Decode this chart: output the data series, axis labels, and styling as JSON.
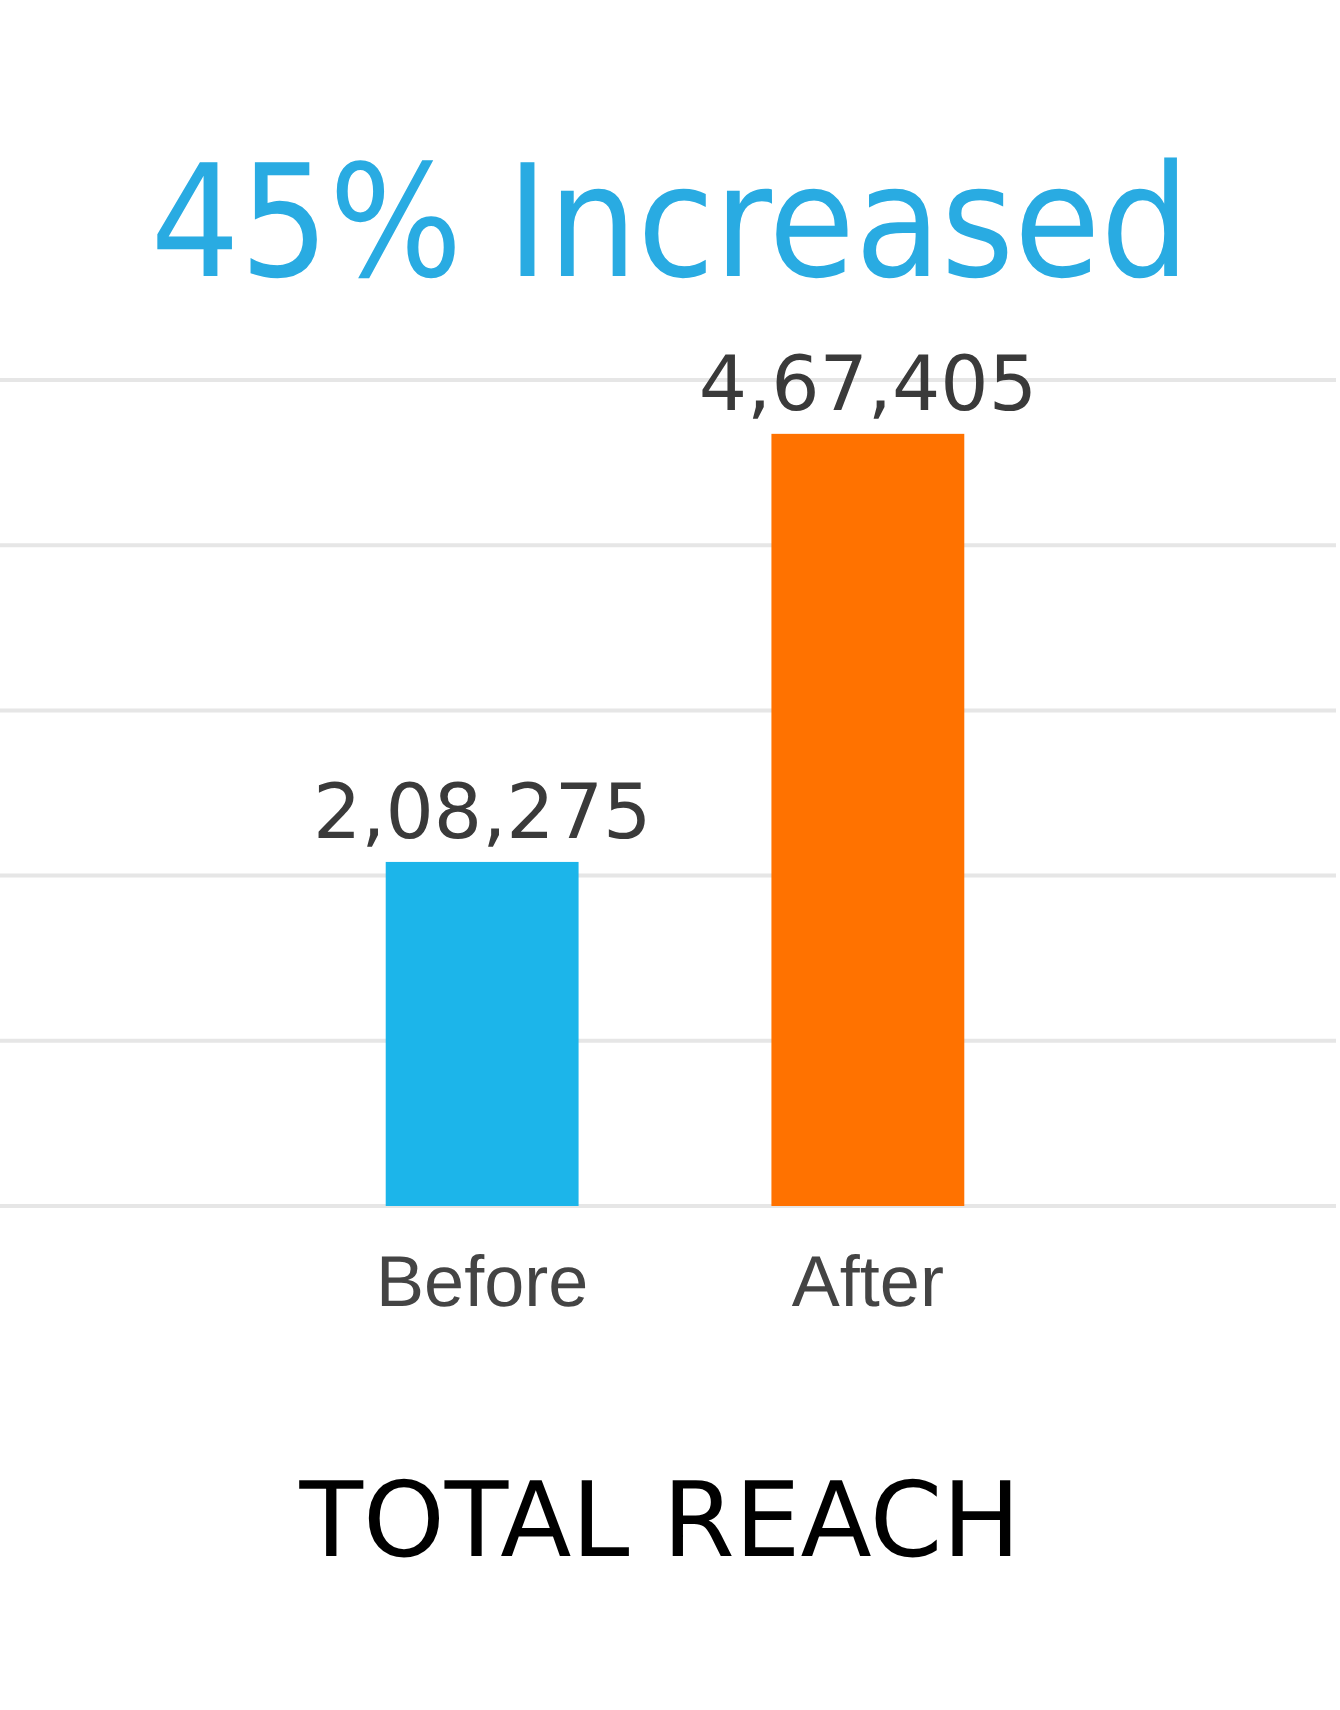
{
  "chart_data": {
    "type": "bar",
    "title": "45% Increased",
    "xlabel": "TOTAL REACH",
    "categories": [
      "Before",
      "After"
    ],
    "values": [
      208275,
      467405
    ],
    "colors": [
      "#1cb5ea",
      "#ff7200"
    ],
    "value_labels": [
      "2,08,275",
      "4,67,405"
    ],
    "ylim": [
      0,
      500000
    ],
    "yticks": [
      {
        "value": 0,
        "label": null
      },
      {
        "value": 100000,
        "label": null
      },
      {
        "value": 200000,
        "label": null
      },
      {
        "value": 300000,
        "label": null
      },
      {
        "value": 400000,
        "label": null
      },
      {
        "value": 500000,
        "label": null
      }
    ],
    "grid": "y",
    "tick_labels": "x"
  }
}
